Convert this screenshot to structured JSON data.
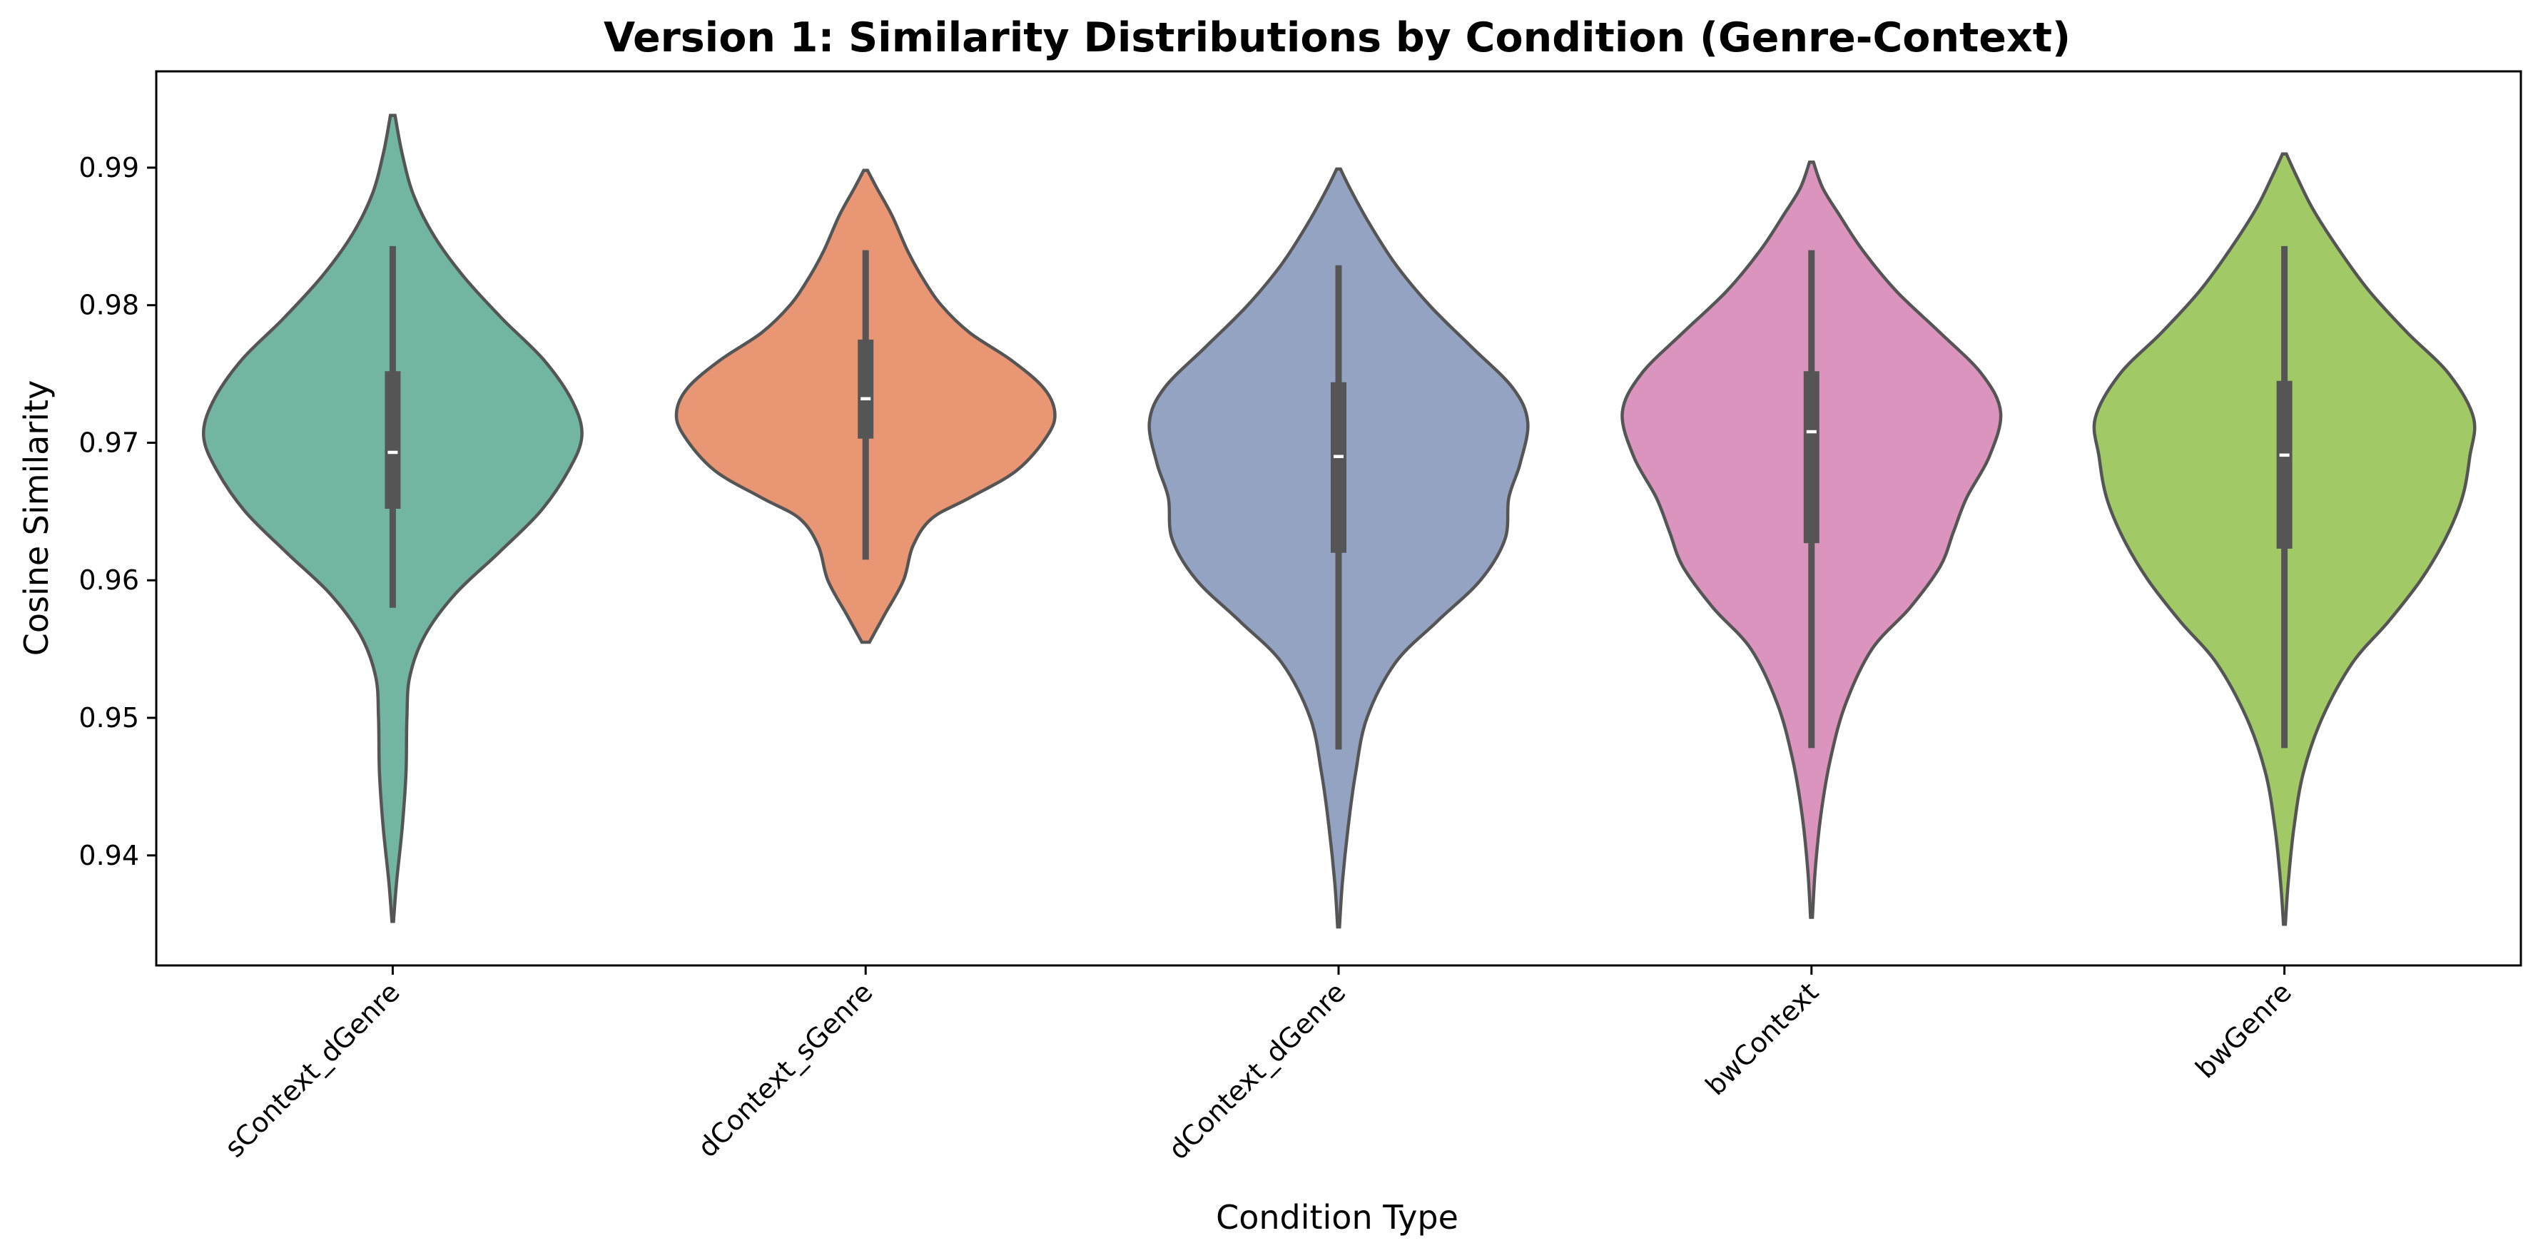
{
  "chart_data": {
    "type": "violin",
    "title": "Version 1: Similarity Distributions by Condition (Genre-Context)",
    "xlabel": "Condition Type",
    "ylabel": "Cosine Similarity",
    "ylim": [
      0.932,
      0.997
    ],
    "yticks": [
      0.94,
      0.95,
      0.96,
      0.97,
      0.98,
      0.99
    ],
    "ytick_labels": [
      "0.94",
      "0.95",
      "0.96",
      "0.97",
      "0.98",
      "0.99"
    ],
    "grid": false,
    "legend": "none",
    "categories": [
      "sContext_dGenre",
      "dContext_sGenre",
      "dContext_dGenre",
      "bwContext",
      "bwGenre"
    ],
    "series": [
      {
        "category": "sContext_dGenre",
        "color": "#72b6a1",
        "min": 0.958,
        "q1": 0.9652,
        "median": 0.9693,
        "q3": 0.9752,
        "max": 0.9843,
        "density": [
          [
            0.9352,
            0.004
          ],
          [
            0.938,
            0.02
          ],
          [
            0.942,
            0.05
          ],
          [
            0.946,
            0.07
          ],
          [
            0.95,
            0.075
          ],
          [
            0.953,
            0.09
          ],
          [
            0.956,
            0.17
          ],
          [
            0.959,
            0.33
          ],
          [
            0.962,
            0.56
          ],
          [
            0.965,
            0.78
          ],
          [
            0.968,
            0.93
          ],
          [
            0.9705,
            1.0
          ],
          [
            0.973,
            0.95
          ],
          [
            0.976,
            0.8
          ],
          [
            0.979,
            0.58
          ],
          [
            0.982,
            0.38
          ],
          [
            0.985,
            0.22
          ],
          [
            0.988,
            0.11
          ],
          [
            0.991,
            0.05
          ],
          [
            0.9938,
            0.012
          ]
        ]
      },
      {
        "category": "dContext_sGenre",
        "color": "#e99675",
        "min": 0.9615,
        "q1": 0.9703,
        "median": 0.9732,
        "q3": 0.9775,
        "max": 0.984,
        "density": [
          [
            0.9555,
            0.02
          ],
          [
            0.9575,
            0.1
          ],
          [
            0.96,
            0.2
          ],
          [
            0.9625,
            0.25
          ],
          [
            0.9645,
            0.35
          ],
          [
            0.966,
            0.55
          ],
          [
            0.968,
            0.8
          ],
          [
            0.9705,
            0.96
          ],
          [
            0.9722,
            1.0
          ],
          [
            0.974,
            0.94
          ],
          [
            0.976,
            0.77
          ],
          [
            0.978,
            0.55
          ],
          [
            0.98,
            0.4
          ],
          [
            0.982,
            0.3
          ],
          [
            0.984,
            0.22
          ],
          [
            0.9865,
            0.14
          ],
          [
            0.9885,
            0.06
          ],
          [
            0.9898,
            0.01
          ]
        ]
      },
      {
        "category": "dContext_dGenre",
        "color": "#95a3c3",
        "min": 0.9477,
        "q1": 0.962,
        "median": 0.969,
        "q3": 0.9744,
        "max": 0.9829,
        "density": [
          [
            0.9348,
            0.005
          ],
          [
            0.938,
            0.02
          ],
          [
            0.942,
            0.05
          ],
          [
            0.946,
            0.09
          ],
          [
            0.95,
            0.15
          ],
          [
            0.954,
            0.3
          ],
          [
            0.957,
            0.52
          ],
          [
            0.96,
            0.75
          ],
          [
            0.963,
            0.88
          ],
          [
            0.966,
            0.9
          ],
          [
            0.9685,
            0.96
          ],
          [
            0.9715,
            1.0
          ],
          [
            0.974,
            0.92
          ],
          [
            0.977,
            0.7
          ],
          [
            0.98,
            0.48
          ],
          [
            0.983,
            0.3
          ],
          [
            0.986,
            0.16
          ],
          [
            0.9885,
            0.06
          ],
          [
            0.9899,
            0.01
          ]
        ]
      },
      {
        "category": "bwContext",
        "color": "#db94be",
        "min": 0.9478,
        "q1": 0.9627,
        "median": 0.9708,
        "q3": 0.9752,
        "max": 0.984,
        "density": [
          [
            0.9355,
            0.005
          ],
          [
            0.939,
            0.02
          ],
          [
            0.943,
            0.05
          ],
          [
            0.947,
            0.1
          ],
          [
            0.951,
            0.18
          ],
          [
            0.955,
            0.32
          ],
          [
            0.958,
            0.52
          ],
          [
            0.961,
            0.68
          ],
          [
            0.9635,
            0.75
          ],
          [
            0.966,
            0.82
          ],
          [
            0.969,
            0.94
          ],
          [
            0.9722,
            1.0
          ],
          [
            0.975,
            0.9
          ],
          [
            0.978,
            0.68
          ],
          [
            0.981,
            0.45
          ],
          [
            0.984,
            0.27
          ],
          [
            0.9865,
            0.15
          ],
          [
            0.9885,
            0.06
          ],
          [
            0.9904,
            0.01
          ]
        ]
      },
      {
        "category": "bwGenre",
        "color": "#a1c966",
        "min": 0.9478,
        "q1": 0.9623,
        "median": 0.9691,
        "q3": 0.9745,
        "max": 0.9843,
        "density": [
          [
            0.935,
            0.005
          ],
          [
            0.938,
            0.02
          ],
          [
            0.942,
            0.05
          ],
          [
            0.946,
            0.1
          ],
          [
            0.95,
            0.2
          ],
          [
            0.954,
            0.36
          ],
          [
            0.957,
            0.55
          ],
          [
            0.96,
            0.72
          ],
          [
            0.963,
            0.85
          ],
          [
            0.966,
            0.94
          ],
          [
            0.969,
            0.98
          ],
          [
            0.9718,
            1.0
          ],
          [
            0.975,
            0.87
          ],
          [
            0.978,
            0.65
          ],
          [
            0.981,
            0.45
          ],
          [
            0.984,
            0.29
          ],
          [
            0.987,
            0.15
          ],
          [
            0.9895,
            0.06
          ],
          [
            0.991,
            0.01
          ]
        ]
      }
    ]
  }
}
